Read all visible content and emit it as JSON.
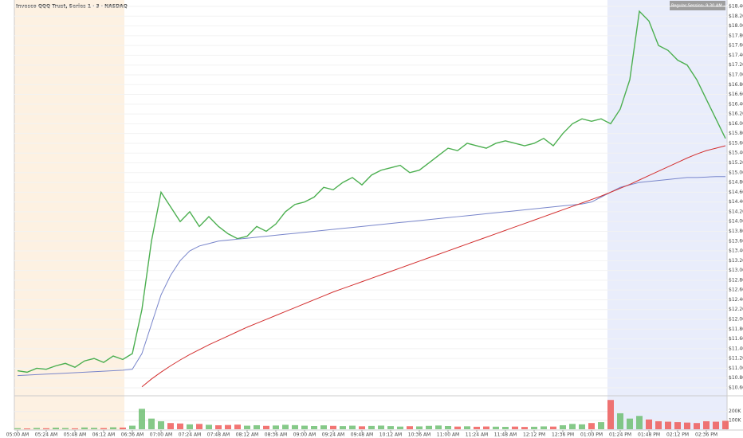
{
  "chart_data": [
    {
      "type": "line",
      "title": "Invesco QQQ Trust, Series 1 · 3 · NASDAQ",
      "annotation": "Regular Session: 9:30 AM – 4:00 PM",
      "categories": [
        "05:00 AM",
        null,
        null,
        "05:24 AM",
        null,
        null,
        "05:48 AM",
        null,
        null,
        "06:12 AM",
        null,
        null,
        "06:36 AM",
        null,
        null,
        "07:00 AM",
        null,
        null,
        "07:24 AM",
        null,
        null,
        "07:48 AM",
        null,
        null,
        "08:12 AM",
        null,
        null,
        "08:36 AM",
        null,
        null,
        "09:00 AM",
        null,
        null,
        "09:24 AM",
        null,
        null,
        "09:48 AM",
        null,
        null,
        "10:12 AM",
        null,
        null,
        "10:36 AM",
        null,
        null,
        "11:00 AM",
        null,
        null,
        "11:24 AM",
        null,
        null,
        "11:48 AM",
        null,
        null,
        "12:12 PM",
        null,
        null,
        "12:36 PM",
        null,
        null,
        "01:00 PM",
        null,
        null,
        "01:24 PM",
        null,
        null,
        "01:48 PM",
        null,
        null,
        "02:12 PM",
        null,
        null,
        "02:36 PM",
        null,
        null
      ],
      "series": [
        {
          "color": "#4caf50",
          "values": [
            10.95,
            10.92,
            11.0,
            10.98,
            11.05,
            11.1,
            11.02,
            11.15,
            11.2,
            11.12,
            11.25,
            11.18,
            11.3,
            12.2,
            13.6,
            14.6,
            14.3,
            14.0,
            14.2,
            13.9,
            14.1,
            13.9,
            13.75,
            13.65,
            13.7,
            13.9,
            13.8,
            13.95,
            14.2,
            14.35,
            14.4,
            14.5,
            14.7,
            14.65,
            14.8,
            14.9,
            14.75,
            14.95,
            15.05,
            15.1,
            15.15,
            15.0,
            15.05,
            15.2,
            15.35,
            15.5,
            15.45,
            15.6,
            15.55,
            15.5,
            15.6,
            15.65,
            15.6,
            15.55,
            15.6,
            15.7,
            15.55,
            15.8,
            16.0,
            16.1,
            16.05,
            16.1,
            16.0,
            16.3,
            16.9,
            18.3,
            18.1,
            17.6,
            17.5,
            17.3,
            17.2,
            16.9,
            16.5,
            16.1,
            15.7
          ]
        },
        {
          "color": "#7986cb",
          "values": [
            10.85,
            10.86,
            10.87,
            10.88,
            10.89,
            10.9,
            10.91,
            10.92,
            10.93,
            10.94,
            10.95,
            10.96,
            10.98,
            11.3,
            11.9,
            12.5,
            12.9,
            13.2,
            13.4,
            13.5,
            13.55,
            13.6,
            13.62,
            13.64,
            13.66,
            13.68,
            13.7,
            13.72,
            13.74,
            13.76,
            13.78,
            13.8,
            13.82,
            13.84,
            13.86,
            13.88,
            13.9,
            13.92,
            13.94,
            13.96,
            13.98,
            14.0,
            14.02,
            14.04,
            14.06,
            14.08,
            14.1,
            14.12,
            14.14,
            14.16,
            14.18,
            14.2,
            14.22,
            14.24,
            14.26,
            14.28,
            14.3,
            14.32,
            14.34,
            14.36,
            14.4,
            14.5,
            14.6,
            14.7,
            14.75,
            14.8,
            14.82,
            14.84,
            14.86,
            14.88,
            14.9,
            14.9,
            14.91,
            14.92,
            14.92
          ]
        },
        {
          "color": "#d32f2f",
          "values": [
            null,
            null,
            null,
            null,
            null,
            null,
            null,
            null,
            null,
            null,
            null,
            null,
            null,
            10.62,
            10.78,
            10.92,
            11.05,
            11.17,
            11.28,
            11.38,
            11.48,
            11.57,
            11.66,
            11.75,
            11.84,
            11.92,
            12.0,
            12.08,
            12.16,
            12.24,
            12.32,
            12.4,
            12.48,
            12.56,
            12.63,
            12.7,
            12.77,
            12.84,
            12.91,
            12.98,
            13.05,
            13.12,
            13.19,
            13.26,
            13.33,
            13.4,
            13.47,
            13.54,
            13.61,
            13.68,
            13.75,
            13.82,
            13.89,
            13.96,
            14.03,
            14.1,
            14.17,
            14.24,
            14.31,
            14.38,
            14.45,
            14.52,
            14.6,
            14.68,
            14.76,
            14.85,
            14.94,
            15.03,
            15.12,
            15.21,
            15.3,
            15.38,
            15.45,
            15.5,
            15.55
          ]
        }
      ],
      "ylim": [
        10.6,
        18.4
      ],
      "yticks": [
        {
          "value": 10.6,
          "label": "$10.60"
        },
        {
          "value": 10.8,
          "label": "$10.80"
        },
        {
          "value": 11.0,
          "label": "$11.00"
        },
        {
          "value": 11.2,
          "label": "$11.20"
        },
        {
          "value": 11.4,
          "label": "$11.40"
        },
        {
          "value": 11.6,
          "label": "$11.60"
        },
        {
          "value": 11.8,
          "label": "$11.80"
        },
        {
          "value": 12.0,
          "label": "$12.00"
        },
        {
          "value": 12.2,
          "label": "$12.20"
        },
        {
          "value": 12.4,
          "label": "$12.40"
        },
        {
          "value": 12.6,
          "label": "$12.60"
        },
        {
          "value": 12.8,
          "label": "$12.80"
        },
        {
          "value": 13.0,
          "label": "$13.00"
        },
        {
          "value": 13.2,
          "label": "$13.20"
        },
        {
          "value": 13.4,
          "label": "$13.40"
        },
        {
          "value": 13.6,
          "label": "$13.60"
        },
        {
          "value": 13.8,
          "label": "$13.80"
        },
        {
          "value": 14.0,
          "label": "$14.00"
        },
        {
          "value": 14.2,
          "label": "$14.20"
        },
        {
          "value": 14.4,
          "label": "$14.40"
        },
        {
          "value": 14.6,
          "label": "$14.60"
        },
        {
          "value": 14.8,
          "label": "$14.80"
        },
        {
          "value": 15.0,
          "label": "$15.00"
        },
        {
          "value": 15.2,
          "label": "$15.20"
        },
        {
          "value": 15.4,
          "label": "$15.40"
        },
        {
          "value": 15.6,
          "label": "$15.60"
        },
        {
          "value": 15.8,
          "label": "$15.80"
        },
        {
          "value": 16.0,
          "label": "$16.00"
        },
        {
          "value": 16.2,
          "label": "$16.20"
        },
        {
          "value": 16.4,
          "label": "$16.40"
        },
        {
          "value": 16.6,
          "label": "$16.60"
        },
        {
          "value": 16.8,
          "label": "$16.80"
        },
        {
          "value": 17.0,
          "label": "$17.00"
        },
        {
          "value": 17.2,
          "label": "$17.20"
        },
        {
          "value": 17.4,
          "label": "$17.40"
        },
        {
          "value": 17.6,
          "label": "$17.60"
        },
        {
          "value": 17.8,
          "label": "$17.80"
        },
        {
          "value": 18.0,
          "label": "$18.00"
        },
        {
          "value": 18.2,
          "label": "$18.20"
        },
        {
          "value": 18.4,
          "label": "$18.40"
        }
      ],
      "grid": true
    },
    {
      "type": "bar",
      "values": [
        12000,
        9000,
        15000,
        11000,
        18000,
        14000,
        10000,
        20000,
        16000,
        13000,
        22000,
        19000,
        40000,
        230000,
        120000,
        90000,
        70000,
        65000,
        55000,
        60000,
        50000,
        45000,
        48000,
        52000,
        40000,
        45000,
        38000,
        42000,
        50000,
        46000,
        40000,
        36000,
        44000,
        38000,
        35000,
        40000,
        33000,
        37000,
        41000,
        35000,
        30000,
        34000,
        32000,
        38000,
        42000,
        36000,
        30000,
        33000,
        28000,
        31000,
        29000,
        27000,
        30000,
        26000,
        28000,
        32000,
        30000,
        45000,
        60000,
        55000,
        70000,
        80000,
        330000,
        180000,
        120000,
        150000,
        110000,
        90000,
        85000,
        80000,
        75000,
        70000,
        90000,
        85000,
        95000
      ],
      "up_color": "#66bb6a",
      "down_color": "#ef5350",
      "ylim": [
        0,
        350000
      ],
      "yticks": [
        {
          "value": 100000,
          "label": "100K"
        },
        {
          "value": 200000,
          "label": "200K"
        }
      ]
    }
  ]
}
